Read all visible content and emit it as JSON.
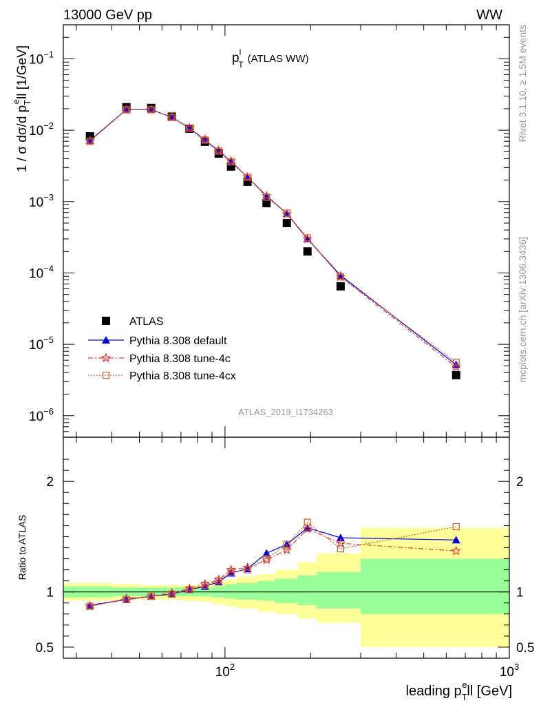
{
  "header": {
    "left": "13000 GeV pp",
    "right": "WW"
  },
  "side_labels": {
    "rivet": "Rivet 3.1.10, ≥ 1.5M events",
    "mcplots": "mcplots.cern.ch [arXiv:1306.3436]"
  },
  "analysis_id": "ATLAS_2019_I1734263",
  "colors": {
    "data": "#000000",
    "default": "#0000dd",
    "tune4c": "#ee3333",
    "tune4cx": "#cc6633",
    "band_inner": "#99ff99",
    "band_outer": "#ffff99"
  },
  "chart_data": [
    {
      "type": "scatter",
      "panel": "main",
      "title_main": "p",
      "title_sup": "l",
      "title_sub": "T",
      "title_suffix": "(ATLAS WW)",
      "ylabel": "1 / σ  dσ/d p",
      "ylabel_sub": "T",
      "ylabel_sup": "e",
      "ylabel_suffix": "ll [1/GeV]",
      "xscale": "log",
      "yscale": "log",
      "xlim": [
        27,
        1000
      ],
      "ylim": [
        5e-07,
        0.3
      ],
      "yticks": [
        {
          "v": 1e-06,
          "base": "10",
          "exp": "−6"
        },
        {
          "v": 1e-05,
          "base": "10",
          "exp": "−5"
        },
        {
          "v": 0.0001,
          "base": "10",
          "exp": "−4"
        },
        {
          "v": 0.001,
          "base": "10",
          "exp": "−3"
        },
        {
          "v": 0.01,
          "base": "10",
          "exp": "−2"
        },
        {
          "v": 0.1,
          "base": "10",
          "exp": "−1"
        }
      ],
      "legend_position": "lower-left",
      "series": [
        {
          "name": "ATLAS",
          "key": "data",
          "marker": "square",
          "line": "none",
          "x": [
            33.5,
            45,
            55,
            65,
            75,
            85,
            95,
            105,
            120,
            140,
            165,
            195,
            255,
            650
          ],
          "y": [
            0.0082,
            0.021,
            0.0205,
            0.0155,
            0.0105,
            0.0069,
            0.0047,
            0.0031,
            0.0019,
            0.00095,
            0.0005,
            0.0002,
            6.5e-05,
            3.7e-06
          ]
        },
        {
          "name": "Pythia 8.308 default",
          "key": "default",
          "marker": "triangle",
          "line": "solid",
          "x": [
            33.5,
            45,
            55,
            65,
            75,
            85,
            95,
            105,
            120,
            140,
            165,
            195,
            255,
            650
          ],
          "y": [
            0.0072,
            0.0195,
            0.0195,
            0.0152,
            0.0107,
            0.0072,
            0.0051,
            0.0036,
            0.0022,
            0.0012,
            0.00068,
            0.0003,
            9.25e-05,
            5.2e-06
          ]
        },
        {
          "name": "Pythia 8.308 tune-4c",
          "key": "tune4c",
          "marker": "star",
          "line": "dashdot",
          "x": [
            33.5,
            45,
            55,
            65,
            75,
            85,
            95,
            105,
            120,
            140,
            165,
            195,
            255,
            650
          ],
          "y": [
            0.0071,
            0.0194,
            0.0194,
            0.0151,
            0.0108,
            0.0074,
            0.0052,
            0.0037,
            0.0022,
            0.0012,
            0.00067,
            0.0003,
            8.9e-05,
            4.8e-06
          ]
        },
        {
          "name": "Pythia 8.308 tune-4cx",
          "key": "tune4cx",
          "marker": "opensquare",
          "line": "dotted",
          "x": [
            33.5,
            45,
            55,
            65,
            75,
            85,
            95,
            105,
            120,
            140,
            165,
            195,
            255,
            650
          ],
          "y": [
            0.007,
            0.0193,
            0.0194,
            0.0151,
            0.0107,
            0.0073,
            0.0051,
            0.0036,
            0.0022,
            0.00115,
            0.00069,
            0.00031,
            8.8e-05,
            5.6e-06
          ]
        }
      ]
    },
    {
      "type": "line",
      "panel": "ratio",
      "ylabel": "Ratio to ATLAS",
      "xlabel_main": "leading p",
      "xlabel_sub": "T",
      "xlabel_sup": "e",
      "xlabel_suffix": "ll [GeV]",
      "xscale": "log",
      "xlim": [
        27,
        1000
      ],
      "ylim": [
        0.4,
        2.4
      ],
      "yticks": [
        {
          "v": 0.5,
          "label": "0.5"
        },
        {
          "v": 1,
          "label": "1"
        },
        {
          "v": 2,
          "label": "2"
        }
      ],
      "xticks": [
        {
          "v": 100,
          "base": "10",
          "exp": "2"
        },
        {
          "v": 1000,
          "base": "10",
          "exp": "3"
        }
      ],
      "bins": [
        27,
        40,
        50,
        60,
        70,
        80,
        90,
        100,
        110,
        130,
        150,
        180,
        210,
        300,
        1000
      ],
      "band_inner": [
        [
          0.95,
          1.05
        ],
        [
          0.96,
          1.04
        ],
        [
          0.96,
          1.04
        ],
        [
          0.96,
          1.04
        ],
        [
          0.96,
          1.04
        ],
        [
          0.96,
          1.04
        ],
        [
          0.95,
          1.05
        ],
        [
          0.94,
          1.07
        ],
        [
          0.93,
          1.08
        ],
        [
          0.92,
          1.1
        ],
        [
          0.9,
          1.12
        ],
        [
          0.88,
          1.15
        ],
        [
          0.85,
          1.18
        ],
        [
          0.8,
          1.3
        ]
      ],
      "band_outer": [
        [
          0.92,
          1.08
        ],
        [
          0.93,
          1.07
        ],
        [
          0.93,
          1.06
        ],
        [
          0.93,
          1.06
        ],
        [
          0.92,
          1.06
        ],
        [
          0.91,
          1.07
        ],
        [
          0.89,
          1.09
        ],
        [
          0.87,
          1.11
        ],
        [
          0.85,
          1.14
        ],
        [
          0.82,
          1.16
        ],
        [
          0.8,
          1.2
        ],
        [
          0.76,
          1.27
        ],
        [
          0.72,
          1.35
        ],
        [
          0.5,
          1.58
        ]
      ],
      "series": [
        {
          "name": "Pythia 8.308 default",
          "key": "default",
          "x": [
            33.5,
            45,
            55,
            65,
            75,
            85,
            95,
            105,
            120,
            140,
            165,
            195,
            255,
            650
          ],
          "y": [
            0.88,
            0.93,
            0.96,
            0.98,
            1.02,
            1.05,
            1.09,
            1.17,
            1.21,
            1.35,
            1.43,
            1.58,
            1.49,
            1.47
          ]
        },
        {
          "name": "Pythia 8.308 tune-4c",
          "key": "tune4c",
          "x": [
            33.5,
            45,
            55,
            65,
            75,
            85,
            95,
            105,
            120,
            140,
            165,
            195,
            255,
            650
          ],
          "y": [
            0.87,
            0.94,
            0.96,
            0.99,
            1.03,
            1.07,
            1.11,
            1.2,
            1.22,
            1.29,
            1.38,
            1.57,
            1.44,
            1.37
          ]
        },
        {
          "name": "Pythia 8.308 tune-4cx",
          "key": "tune4cx",
          "x": [
            33.5,
            45,
            55,
            65,
            75,
            85,
            95,
            105,
            120,
            140,
            165,
            195,
            255,
            650
          ],
          "y": [
            0.87,
            0.93,
            0.96,
            0.98,
            1.02,
            1.06,
            1.1,
            1.18,
            1.2,
            1.3,
            1.43,
            1.63,
            1.39,
            1.59
          ]
        }
      ]
    }
  ]
}
